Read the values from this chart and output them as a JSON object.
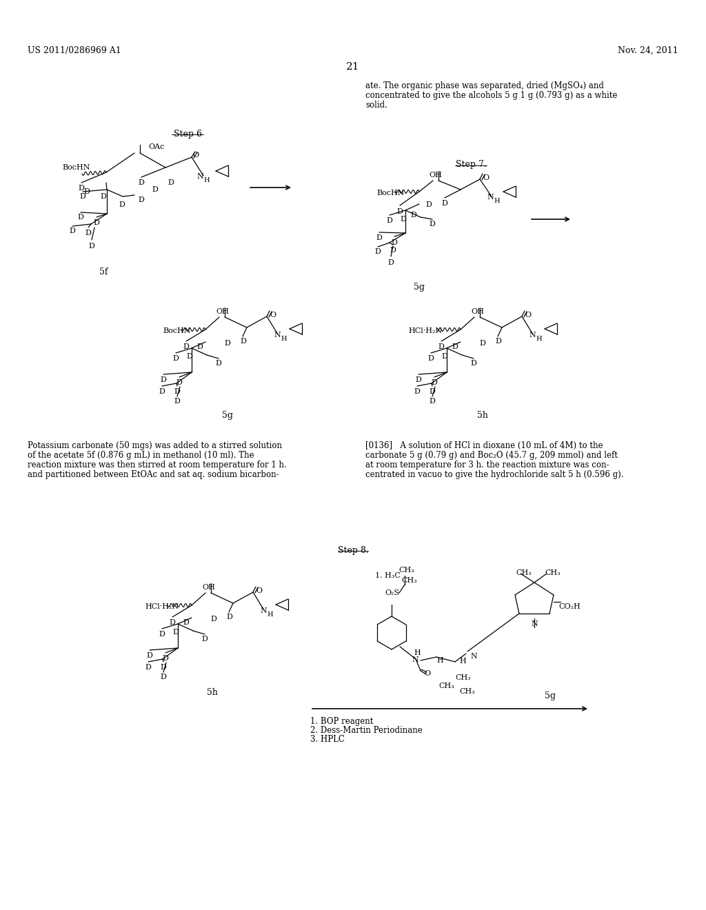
{
  "bg": "#ffffff",
  "header_left": "US 2011/0286969 A1",
  "header_right": "Nov. 24, 2011",
  "page_num": "21",
  "top_right_text_1": "ate. The organic phase was separated, dried (MgSO₄) and",
  "top_right_text_2": "concentrated to give the alcohols 5 g 1 g (0.793 g) as a white",
  "top_right_text_3": "solid.",
  "step6": "Step 6",
  "step7": "Step 7.",
  "step8": "Step 8.",
  "label_5f": "5f",
  "label_5g": "5g",
  "label_5h": "5h",
  "body_left_1": "Potassium carbonate (50 mgs) was added to a stirred solution",
  "body_left_2": "of the acetate 5f (0.876 g mL) in methanol (10 ml). The",
  "body_left_3": "reaction mixture was then stirred at room temperature for 1 h.",
  "body_left_4": "and partitioned between EtOAc and sat aq. sodium bicarbon-",
  "body_right_1": "[0136]   A solution of HCl in dioxane (10 mL of 4M) to the",
  "body_right_2": "carbonate 5 g (0.79 g) and Boc₂O (45.7 g, 209 mmol) and left",
  "body_right_3": "at room temperature for 3 h. the reaction mixture was con-",
  "body_right_4": "centrated in vacuo to give the hydrochloride salt 5 h (0.596 g).",
  "step8_r1": "1. BOP reagent",
  "step8_r2": "2. Dess-Martin Periodinane",
  "step8_r3": "3. HPLC"
}
